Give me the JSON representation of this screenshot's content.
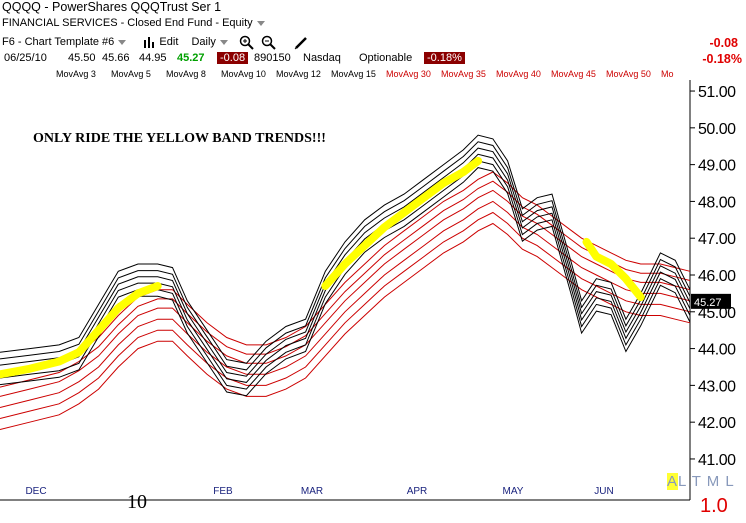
{
  "header": {
    "symbol": "QQQQ",
    "name": "PowerShares QQQTrust Ser 1",
    "sector": "FINANCIAL SERVICES - Closed End Fund - Equity",
    "template": "F6 - Chart Template #6",
    "edit_label": "Edit",
    "period_label": "Daily",
    "date": "06/25/10",
    "open": "45.50",
    "high": "45.66",
    "low": "44.95",
    "close": "45.27",
    "change": "-0.08",
    "volume": "890150",
    "exchange": "Nasdaq",
    "optionable": "Optionable",
    "change_pct": "-0.18%",
    "right_change": "-0.08",
    "right_change_pct": "-0.18%"
  },
  "colors": {
    "short_ma": "#000000",
    "long_ma": "#cc0000",
    "highlight": "#ffff00",
    "axis_label": "#1a237e"
  },
  "chart_data": {
    "type": "line",
    "title": "ONLY RIDE THE YELLOW BAND TRENDS!!!",
    "last_price_label": "45.27",
    "x_ticks": [
      "DEC",
      "10",
      "FEB",
      "MAR",
      "APR",
      "MAY",
      "JUN"
    ],
    "y_ticks": [
      "41.00",
      "42.00",
      "43.00",
      "44.00",
      "45.00",
      "46.00",
      "47.00",
      "48.00",
      "49.00",
      "50.00",
      "51.00"
    ],
    "ylim": [
      40.7,
      51.3
    ],
    "x_range": [
      0,
      140
    ],
    "short_mas": [
      "MovAvg 3",
      "MovAvg 5",
      "MovAvg 8",
      "MovAvg 10",
      "MovAvg 12",
      "MovAvg 15"
    ],
    "long_mas": [
      "MovAvg 30",
      "MovAvg 35",
      "MovAvg 40",
      "MovAvg 45",
      "MovAvg 50",
      "Mo"
    ],
    "short_base": [
      [
        0,
        43.6
      ],
      [
        6,
        43.7
      ],
      [
        12,
        43.8
      ],
      [
        16,
        44.0
      ],
      [
        20,
        44.9
      ],
      [
        24,
        45.8
      ],
      [
        28,
        46.0
      ],
      [
        32,
        46.0
      ],
      [
        35,
        45.9
      ],
      [
        38,
        45.0
      ],
      [
        42,
        44.2
      ],
      [
        46,
        43.4
      ],
      [
        50,
        43.3
      ],
      [
        54,
        43.9
      ],
      [
        58,
        44.3
      ],
      [
        62,
        44.5
      ],
      [
        66,
        45.8
      ],
      [
        70,
        46.6
      ],
      [
        74,
        47.2
      ],
      [
        78,
        47.6
      ],
      [
        82,
        47.9
      ],
      [
        86,
        48.3
      ],
      [
        90,
        48.7
      ],
      [
        94,
        49.1
      ],
      [
        97,
        49.5
      ],
      [
        100,
        49.4
      ],
      [
        103,
        48.8
      ],
      [
        106,
        47.5
      ],
      [
        109,
        47.8
      ],
      [
        112,
        47.9
      ],
      [
        116,
        46.0
      ],
      [
        118,
        45.0
      ],
      [
        121,
        45.6
      ],
      [
        124,
        45.5
      ],
      [
        127,
        44.5
      ],
      [
        130,
        45.2
      ],
      [
        134,
        46.3
      ],
      [
        137,
        46.1
      ],
      [
        140,
        45.3
      ]
    ],
    "long_base": [
      [
        0,
        43.2
      ],
      [
        6,
        43.4
      ],
      [
        12,
        43.6
      ],
      [
        16,
        43.9
      ],
      [
        20,
        44.3
      ],
      [
        24,
        44.9
      ],
      [
        28,
        45.4
      ],
      [
        32,
        45.6
      ],
      [
        35,
        45.6
      ],
      [
        38,
        45.2
      ],
      [
        42,
        44.7
      ],
      [
        46,
        44.3
      ],
      [
        50,
        44.1
      ],
      [
        54,
        44.1
      ],
      [
        58,
        44.3
      ],
      [
        62,
        44.6
      ],
      [
        66,
        45.2
      ],
      [
        70,
        45.8
      ],
      [
        74,
        46.3
      ],
      [
        78,
        46.8
      ],
      [
        82,
        47.2
      ],
      [
        86,
        47.6
      ],
      [
        90,
        48.0
      ],
      [
        94,
        48.3
      ],
      [
        97,
        48.6
      ],
      [
        100,
        48.8
      ],
      [
        103,
        48.5
      ],
      [
        106,
        48.1
      ],
      [
        109,
        47.9
      ],
      [
        112,
        47.6
      ],
      [
        116,
        47.2
      ],
      [
        118,
        47.0
      ],
      [
        121,
        46.8
      ],
      [
        124,
        46.6
      ],
      [
        127,
        46.4
      ],
      [
        130,
        46.3
      ],
      [
        134,
        46.3
      ],
      [
        137,
        46.2
      ],
      [
        140,
        46.1
      ]
    ],
    "highlights": [
      [
        [
          0,
          43.3
        ],
        [
          6,
          43.45
        ],
        [
          12,
          43.65
        ],
        [
          16,
          43.9
        ],
        [
          20,
          44.5
        ],
        [
          24,
          45.1
        ],
        [
          28,
          45.5
        ],
        [
          32,
          45.7
        ]
      ],
      [
        [
          66,
          45.7
        ],
        [
          70,
          46.3
        ],
        [
          74,
          46.8
        ],
        [
          78,
          47.3
        ],
        [
          82,
          47.7
        ],
        [
          86,
          48.1
        ],
        [
          90,
          48.5
        ],
        [
          94,
          48.8
        ],
        [
          97,
          49.1
        ]
      ],
      [
        [
          119,
          46.9
        ],
        [
          121,
          46.5
        ],
        [
          124,
          46.3
        ],
        [
          127,
          45.9
        ],
        [
          130,
          45.4
        ]
      ]
    ]
  },
  "controls": {
    "label": "ALTML",
    "scale": "1.0"
  }
}
